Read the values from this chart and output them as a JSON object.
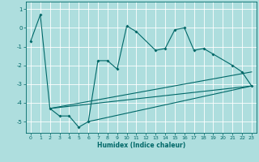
{
  "title": "",
  "xlabel": "Humidex (Indice chaleur)",
  "background_color": "#aedede",
  "line_color": "#006868",
  "grid_color": "#ffffff",
  "xlim": [
    -0.5,
    23.5
  ],
  "ylim": [
    -5.6,
    1.4
  ],
  "yticks": [
    1,
    0,
    -1,
    -2,
    -3,
    -4,
    -5
  ],
  "xticks": [
    0,
    1,
    2,
    3,
    4,
    5,
    6,
    7,
    8,
    9,
    10,
    11,
    12,
    13,
    14,
    15,
    16,
    17,
    18,
    19,
    20,
    21,
    22,
    23
  ],
  "series": [
    [
      0,
      -0.7
    ],
    [
      1,
      0.7
    ],
    [
      2,
      -4.3
    ],
    [
      3,
      -4.7
    ],
    [
      4,
      -4.7
    ],
    [
      5,
      -5.3
    ],
    [
      6,
      -5.0
    ],
    [
      7,
      -1.75
    ],
    [
      8,
      -1.75
    ],
    [
      9,
      -2.2
    ],
    [
      10,
      0.1
    ],
    [
      11,
      -0.2
    ],
    [
      13,
      -1.2
    ],
    [
      14,
      -1.1
    ],
    [
      15,
      -0.1
    ],
    [
      16,
      0.0
    ],
    [
      17,
      -1.2
    ],
    [
      18,
      -1.1
    ],
    [
      19,
      -1.4
    ],
    [
      21,
      -2.0
    ],
    [
      22,
      -2.35
    ],
    [
      23,
      -3.1
    ]
  ],
  "line1": [
    [
      2,
      -4.3
    ],
    [
      23,
      -3.1
    ]
  ],
  "line2": [
    [
      2,
      -4.3
    ],
    [
      23,
      -2.35
    ]
  ],
  "line3": [
    [
      6,
      -5.0
    ],
    [
      23,
      -3.1
    ]
  ]
}
